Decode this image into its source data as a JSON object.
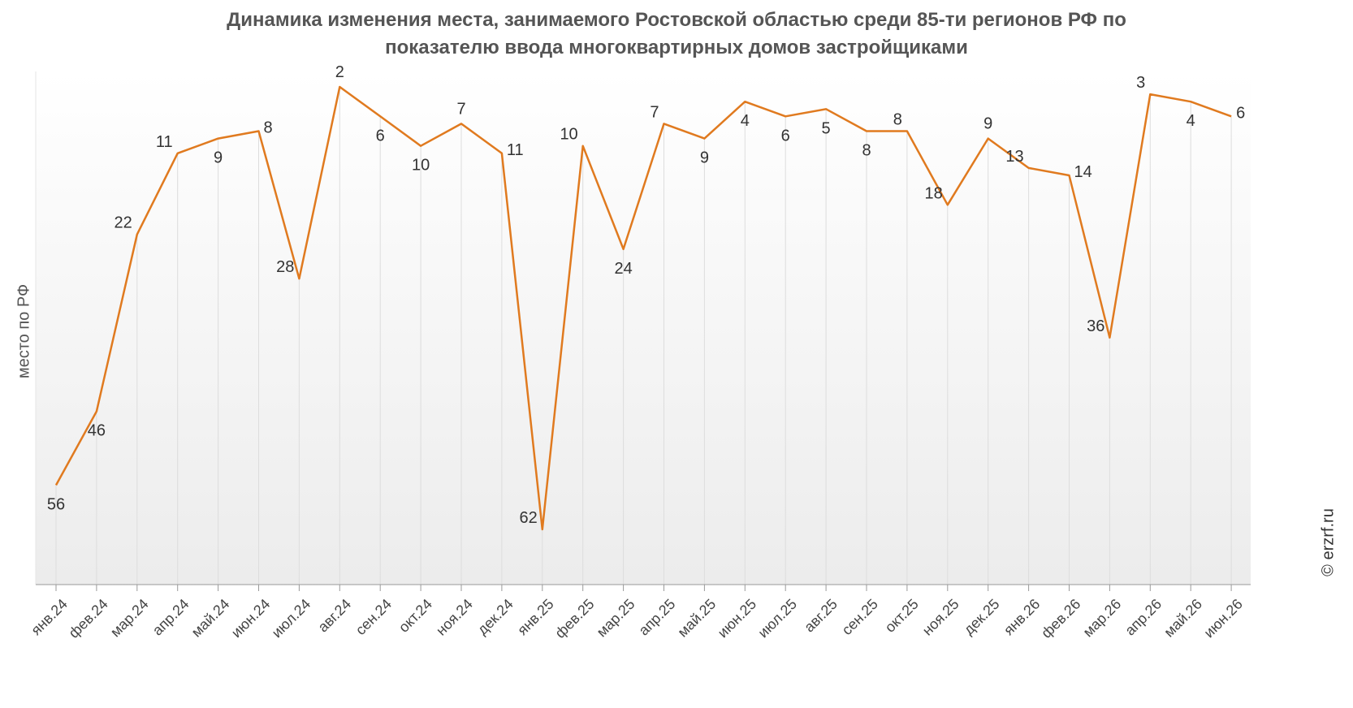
{
  "title_lines": [
    "Динамика изменения места, занимаемого Ростовской областью среди 85-ти регионов РФ по",
    "показателю ввода многоквартирных домов застройщиками"
  ],
  "credit": "© erzrf.ru",
  "colors": {
    "line": "#e07a1f",
    "grid": "#dddddd",
    "axis": "#999999",
    "text": "#555555"
  },
  "chart_data": {
    "type": "line",
    "title": "Динамика изменения места, занимаемого Ростовской областью среди 85-ти регионов РФ по показателю ввода многоквартирных домов застройщиками",
    "xlabel": "",
    "ylabel": "место по РФ",
    "y_reversed": true,
    "ylim": [
      1,
      67
    ],
    "grid": "vertical",
    "categories": [
      "янв.24",
      "фев.24",
      "мар.24",
      "апр.24",
      "май.24",
      "июн.24",
      "июл.24",
      "авг.24",
      "сен.24",
      "окт.24",
      "ноя.24",
      "дек.24",
      "янв.25",
      "фев.25",
      "мар.25",
      "апр.25",
      "май.25",
      "июн.25",
      "июл.25",
      "авг.25",
      "сен.25",
      "окт.25",
      "ноя.25",
      "дек.25",
      "янв.26",
      "фев.26",
      "мар.26",
      "апр.26",
      "май.26",
      "июн.26"
    ],
    "series": [
      {
        "values": [
          56,
          46,
          22,
          11,
          9,
          8,
          28,
          2,
          6,
          10,
          7,
          11,
          62,
          10,
          24,
          7,
          9,
          4,
          6,
          5,
          8,
          8,
          18,
          9,
          13,
          14,
          36,
          3,
          4,
          6
        ],
        "label_position": [
          "below",
          "below",
          "left",
          "left",
          "below",
          "right",
          "left",
          "above",
          "below",
          "below",
          "above",
          "right",
          "left",
          "left",
          "below",
          "left",
          "below",
          "below",
          "below",
          "below",
          "below",
          "left",
          "left",
          "above",
          "left",
          "right",
          "left",
          "left",
          "below",
          "right"
        ]
      }
    ]
  }
}
